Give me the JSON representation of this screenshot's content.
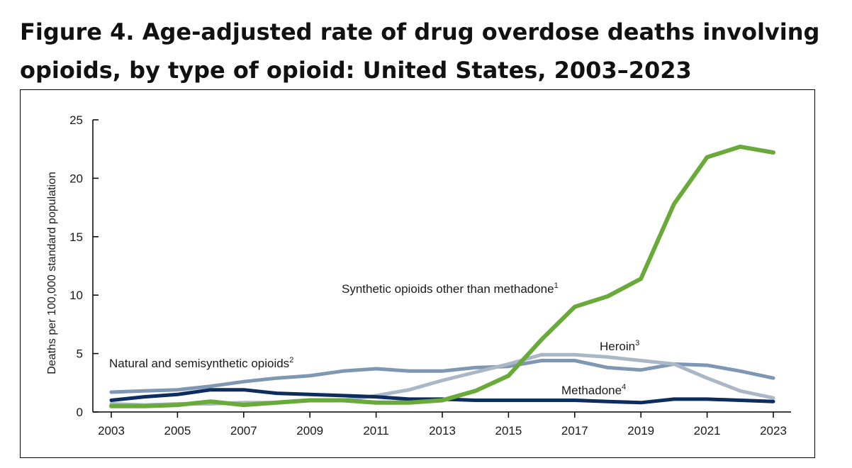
{
  "figure": {
    "title_line1": "Figure 4. Age-adjusted rate of drug overdose deaths involving",
    "title_line2": "opioids, by type of opioid: United States, 2003–2023"
  },
  "chart_data": {
    "type": "line",
    "title": "Figure 4. Age-adjusted rate of drug overdose deaths involving opioids, by type of opioid: United States, 2003–2023",
    "xlabel": "",
    "ylabel": "Deaths per 100,000 standard population",
    "xlim": [
      2003,
      2023
    ],
    "ylim": [
      0,
      25
    ],
    "x_ticks": [
      "2003",
      "2005",
      "2007",
      "2009",
      "2011",
      "2013",
      "2015",
      "2017",
      "2019",
      "2021",
      "2023"
    ],
    "y_ticks": [
      "0",
      "5",
      "10",
      "15",
      "20",
      "25"
    ],
    "x": [
      2003,
      2004,
      2005,
      2006,
      2007,
      2008,
      2009,
      2010,
      2011,
      2012,
      2013,
      2014,
      2015,
      2016,
      2017,
      2018,
      2019,
      2020,
      2021,
      2022,
      2023
    ],
    "series": [
      {
        "name": "Natural and semisynthetic opioids",
        "footnote": "2",
        "color": "#7f97b3",
        "width": 5,
        "values": [
          1.7,
          1.8,
          1.9,
          2.2,
          2.6,
          2.9,
          3.1,
          3.5,
          3.7,
          3.5,
          3.5,
          3.8,
          3.9,
          4.4,
          4.4,
          3.8,
          3.6,
          4.1,
          4.0,
          3.5,
          2.9
        ]
      },
      {
        "name": "Heroin",
        "footnote": "3",
        "color": "#a9b7c7",
        "width": 5,
        "values": [
          0.7,
          0.6,
          0.7,
          0.7,
          0.8,
          0.8,
          1.0,
          1.0,
          1.4,
          1.9,
          2.7,
          3.4,
          4.1,
          4.9,
          4.9,
          4.7,
          4.4,
          4.1,
          2.9,
          1.8,
          1.2
        ]
      },
      {
        "name": "Methadone",
        "footnote": "4",
        "color": "#0d2d5e",
        "width": 5,
        "values": [
          1.0,
          1.3,
          1.5,
          1.9,
          1.9,
          1.6,
          1.5,
          1.4,
          1.3,
          1.1,
          1.1,
          1.0,
          1.0,
          1.0,
          1.0,
          0.9,
          0.8,
          1.1,
          1.1,
          1.0,
          0.9
        ]
      },
      {
        "name": "Synthetic opioids other than methadone",
        "footnote": "1",
        "color": "#6aaa3a",
        "width": 6,
        "values": [
          0.5,
          0.5,
          0.6,
          0.9,
          0.6,
          0.8,
          1.0,
          1.0,
          0.8,
          0.8,
          1.0,
          1.8,
          3.1,
          6.2,
          9.0,
          9.9,
          11.4,
          17.8,
          21.8,
          22.7,
          22.2
        ]
      }
    ],
    "annotations": [
      {
        "series": "Synthetic opioids other than methadone",
        "text": "Synthetic opioids other than methadone",
        "sup": "1"
      },
      {
        "series": "Natural and semisynthetic opioids",
        "text": "Natural and semisynthetic opioids",
        "sup": "2"
      },
      {
        "series": "Heroin",
        "text": "Heroin",
        "sup": "3"
      },
      {
        "series": "Methadone",
        "text": "Methadone",
        "sup": "4"
      }
    ],
    "grid": false,
    "legend": "inline-labels"
  }
}
